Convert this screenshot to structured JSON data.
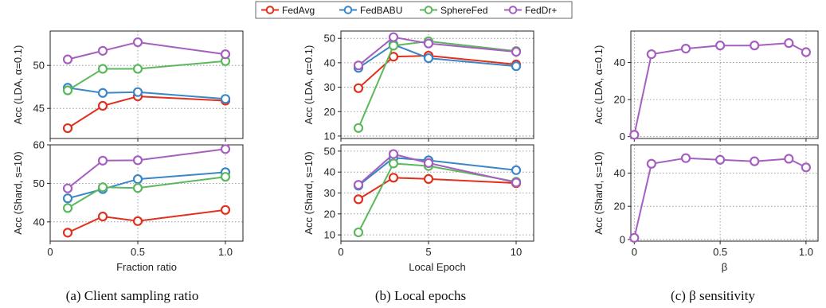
{
  "legend": [
    {
      "name": "FedAvg",
      "color": "#e0301e"
    },
    {
      "name": "FedBABU",
      "color": "#3a86c6"
    },
    {
      "name": "SphereFed",
      "color": "#5cb85c"
    },
    {
      "name": "FedDr+",
      "color": "#a55fbf"
    }
  ],
  "captions": [
    "(a) Client sampling ratio",
    "(b) Local epochs",
    "(c) β sensitivity"
  ],
  "chart_data": [
    {
      "id": "a-top",
      "type": "line",
      "xlim": [
        0,
        1.1
      ],
      "ylim": [
        41.5,
        54
      ],
      "xticks": [
        0,
        0.5,
        1.0
      ],
      "xticklabels": [
        "0",
        "0.5",
        "1.0"
      ],
      "yticks": [
        45,
        50
      ],
      "yticklabels": [
        "45",
        "50"
      ],
      "xlabel": "",
      "ylabel": "Acc (LDA, α=0.1)",
      "grid": true,
      "x": [
        0.1,
        0.3,
        0.5,
        1.0
      ],
      "series": [
        {
          "name": "FedAvg",
          "values": [
            42.7,
            45.3,
            46.4,
            45.9
          ]
        },
        {
          "name": "FedBABU",
          "values": [
            47.4,
            46.8,
            46.9,
            46.1
          ]
        },
        {
          "name": "SphereFed",
          "values": [
            47.1,
            49.6,
            49.6,
            50.5
          ]
        },
        {
          "name": "FedDr+",
          "values": [
            50.7,
            51.7,
            52.7,
            51.3
          ]
        }
      ]
    },
    {
      "id": "a-bottom",
      "type": "line",
      "xlim": [
        0,
        1.1
      ],
      "ylim": [
        35,
        60
      ],
      "xticks": [
        0,
        0.5,
        1.0
      ],
      "xticklabels": [
        "0",
        "0.5",
        "1.0"
      ],
      "yticks": [
        40,
        50,
        60
      ],
      "yticklabels": [
        "40",
        "50",
        "60"
      ],
      "xlabel": "Fraction ratio",
      "ylabel": "Acc (Shard, s=10)",
      "grid": true,
      "x": [
        0.1,
        0.3,
        0.5,
        1.0
      ],
      "series": [
        {
          "name": "FedAvg",
          "values": [
            37.2,
            41.4,
            40.2,
            43.1
          ]
        },
        {
          "name": "FedBABU",
          "values": [
            46.1,
            48.5,
            51.1,
            52.9
          ]
        },
        {
          "name": "SphereFed",
          "values": [
            43.6,
            49.0,
            48.8,
            51.7
          ]
        },
        {
          "name": "FedDr+",
          "values": [
            48.7,
            55.9,
            56.0,
            58.9
          ]
        }
      ]
    },
    {
      "id": "b-top",
      "type": "line",
      "xlim": [
        0,
        11
      ],
      "ylim": [
        9,
        53
      ],
      "xticks": [
        0,
        5,
        10
      ],
      "xticklabels": [
        "0",
        "5",
        "10"
      ],
      "yticks": [
        10,
        20,
        30,
        40,
        50
      ],
      "yticklabels": [
        "10",
        "20",
        "30",
        "40",
        "50"
      ],
      "xlabel": "",
      "ylabel": "Acc (LDA, α=0.1)",
      "grid": true,
      "x": [
        1,
        3,
        5,
        10
      ],
      "series": [
        {
          "name": "FedAvg",
          "values": [
            29.6,
            42.5,
            42.9,
            39.3
          ]
        },
        {
          "name": "FedBABU",
          "values": [
            37.9,
            47.5,
            41.9,
            38.6
          ]
        },
        {
          "name": "SphereFed",
          "values": [
            13.3,
            47.0,
            48.8,
            44.8
          ]
        },
        {
          "name": "FedDr+",
          "values": [
            38.9,
            50.5,
            47.9,
            44.5
          ]
        }
      ]
    },
    {
      "id": "b-bottom",
      "type": "line",
      "xlim": [
        0,
        11
      ],
      "ylim": [
        7,
        53
      ],
      "xticks": [
        0,
        5,
        10
      ],
      "xticklabels": [
        "0",
        "5",
        "10"
      ],
      "yticks": [
        10,
        20,
        30,
        40,
        50
      ],
      "yticklabels": [
        "10",
        "20",
        "30",
        "40",
        "50"
      ],
      "xlabel": "Local Epoch",
      "ylabel": "Acc (Shard, s=10)",
      "grid": true,
      "x": [
        1,
        3,
        5,
        10
      ],
      "series": [
        {
          "name": "FedAvg",
          "values": [
            27.0,
            37.3,
            36.7,
            34.7
          ]
        },
        {
          "name": "FedBABU",
          "values": [
            33.5,
            46.8,
            45.6,
            40.9
          ]
        },
        {
          "name": "SphereFed",
          "values": [
            11.2,
            44.1,
            42.9,
            35.4
          ]
        },
        {
          "name": "FedDr+",
          "values": [
            33.9,
            48.6,
            44.3,
            35.0
          ]
        }
      ]
    },
    {
      "id": "c-top",
      "type": "line",
      "xlim": [
        -0.02,
        1.07
      ],
      "ylim": [
        -1,
        57
      ],
      "xticks": [
        0,
        0.5,
        1.0
      ],
      "xticklabels": [
        "0",
        "0.5",
        "1.0"
      ],
      "yticks": [
        0,
        20,
        40
      ],
      "yticklabels": [
        "0",
        "20",
        "40"
      ],
      "xlabel": "",
      "ylabel": "Acc (LDA, α=0.1)",
      "grid": true,
      "x": [
        0,
        0.1,
        0.3,
        0.5,
        0.7,
        0.9,
        1.0
      ],
      "series": [
        {
          "name": "FedDr+",
          "values": [
            1,
            44.5,
            47.5,
            49.2,
            49.2,
            50.5,
            45.6
          ]
        }
      ]
    },
    {
      "id": "c-bottom",
      "type": "line",
      "xlim": [
        -0.02,
        1.07
      ],
      "ylim": [
        -1,
        57
      ],
      "xticks": [
        0,
        0.5,
        1.0
      ],
      "xticklabels": [
        "0",
        "0.5",
        "1.0"
      ],
      "yticks": [
        0,
        20,
        40
      ],
      "yticklabels": [
        "0",
        "20",
        "40"
      ],
      "xlabel": "β",
      "ylabel": "Acc (Shard, s=10)",
      "grid": true,
      "x": [
        0,
        0.1,
        0.3,
        0.5,
        0.7,
        0.9,
        1.0
      ],
      "series": [
        {
          "name": "FedDr+",
          "values": [
            1,
            45.6,
            49.0,
            48.0,
            47.1,
            48.6,
            43.4
          ]
        }
      ]
    }
  ]
}
